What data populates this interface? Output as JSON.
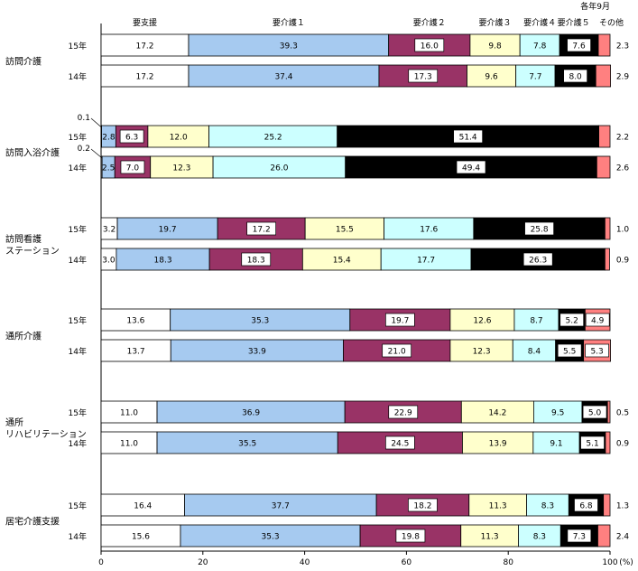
{
  "chart_data": {
    "type": "stacked-bar-horizontal",
    "period_note": "各年9月",
    "unit_label": "(%)",
    "xlim": [
      0,
      100
    ],
    "x_ticks": [
      0,
      20,
      40,
      60,
      80,
      100
    ],
    "categories": [
      "要支援",
      "要介護１",
      "要介護２",
      "要介護３",
      "要介護４",
      "要介護５",
      "その他"
    ],
    "category_colors": [
      "#ffffff",
      "#a6caf0",
      "#993366",
      "#ffffcc",
      "#ccffff",
      "#000000",
      "#ff8080"
    ],
    "groups": [
      {
        "label": "訪問介護",
        "bars": [
          {
            "year": "15年",
            "values": [
              17.2,
              39.3,
              16.0,
              9.8,
              7.8,
              7.6,
              2.3
            ]
          },
          {
            "year": "14年",
            "values": [
              17.2,
              37.4,
              17.3,
              9.6,
              7.7,
              8.0,
              2.9
            ]
          }
        ]
      },
      {
        "label": "訪問入浴介護",
        "bars": [
          {
            "year": "15年",
            "values": [
              0.1,
              2.8,
              6.3,
              12.0,
              25.2,
              51.4,
              2.2
            ]
          },
          {
            "year": "14年",
            "values": [
              0.2,
              2.5,
              7.0,
              12.3,
              26.0,
              49.4,
              2.6
            ]
          }
        ]
      },
      {
        "label": "訪問看護ステーション",
        "bars": [
          {
            "year": "15年",
            "values": [
              3.2,
              19.7,
              17.2,
              15.5,
              17.6,
              25.8,
              1.0
            ]
          },
          {
            "year": "14年",
            "values": [
              3.0,
              18.3,
              18.3,
              15.4,
              17.7,
              26.3,
              0.9
            ]
          }
        ]
      },
      {
        "label": "通所介護",
        "bars": [
          {
            "year": "15年",
            "values": [
              13.6,
              35.3,
              19.7,
              12.6,
              8.7,
              5.2,
              4.9
            ]
          },
          {
            "year": "14年",
            "values": [
              13.7,
              33.9,
              21.0,
              12.3,
              8.4,
              5.5,
              5.3
            ]
          }
        ]
      },
      {
        "label": "通所リハビリテーション",
        "bars": [
          {
            "year": "15年",
            "values": [
              11.0,
              36.9,
              22.9,
              14.2,
              9.5,
              5.0,
              0.5
            ]
          },
          {
            "year": "14年",
            "values": [
              11.0,
              35.5,
              24.5,
              13.9,
              9.1,
              5.1,
              0.9
            ]
          }
        ]
      },
      {
        "label": "居宅介護支援",
        "bars": [
          {
            "year": "15年",
            "values": [
              16.4,
              37.7,
              18.2,
              11.3,
              8.3,
              6.8,
              1.3
            ]
          },
          {
            "year": "14年",
            "values": [
              15.6,
              35.3,
              19.8,
              11.3,
              8.3,
              7.3,
              2.4
            ]
          }
        ]
      }
    ]
  }
}
